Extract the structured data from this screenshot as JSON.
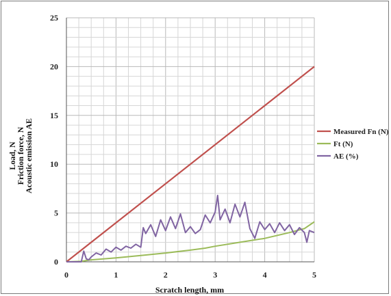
{
  "chart_data": {
    "type": "line",
    "xlabel": "Scratch length, mm",
    "ylabel_lines": [
      "Load, N",
      "Friction force, N",
      "Acoustic emission AE"
    ],
    "xlim": [
      0,
      5
    ],
    "ylim": [
      0,
      25
    ],
    "x_ticks": [
      "0",
      "1",
      "2",
      "3",
      "4",
      "5"
    ],
    "y_ticks": [
      "0",
      "5",
      "10",
      "15",
      "20",
      "25"
    ],
    "grid": true,
    "legend_position": "right",
    "series": [
      {
        "name": "Measured Fn (N)",
        "color": "#c0504d",
        "x": [
          0,
          5
        ],
        "y": [
          0,
          20
        ]
      },
      {
        "name": "Ft (N)",
        "color": "#9bbb59",
        "x": [
          0,
          0.3,
          0.5,
          1.0,
          1.5,
          2.0,
          2.5,
          2.8,
          3.0,
          3.5,
          4.0,
          4.5,
          4.8,
          5.0
        ],
        "y": [
          0,
          0.05,
          0.2,
          0.4,
          0.65,
          0.9,
          1.2,
          1.4,
          1.6,
          2.0,
          2.4,
          3.0,
          3.4,
          4.1
        ]
      },
      {
        "name": "AE (%)",
        "color": "#8064a2",
        "x": [
          0,
          0.3,
          0.35,
          0.4,
          0.45,
          0.5,
          0.6,
          0.7,
          0.8,
          0.9,
          1.0,
          1.1,
          1.2,
          1.3,
          1.4,
          1.5,
          1.55,
          1.6,
          1.7,
          1.8,
          1.9,
          2.0,
          2.1,
          2.2,
          2.3,
          2.4,
          2.5,
          2.6,
          2.7,
          2.8,
          2.9,
          3.0,
          3.05,
          3.1,
          3.2,
          3.3,
          3.4,
          3.5,
          3.6,
          3.7,
          3.8,
          3.9,
          4.0,
          4.1,
          4.2,
          4.3,
          4.4,
          4.5,
          4.6,
          4.7,
          4.8,
          4.85,
          4.9,
          5.0
        ],
        "y": [
          0,
          0,
          1.1,
          0.3,
          0.2,
          0.5,
          0.9,
          0.7,
          1.3,
          1.0,
          1.5,
          1.2,
          1.6,
          1.4,
          1.8,
          1.5,
          3.5,
          2.9,
          3.8,
          2.6,
          4.3,
          3.2,
          4.6,
          3.4,
          4.9,
          3.0,
          3.6,
          2.9,
          3.3,
          4.8,
          4.0,
          5.1,
          6.8,
          4.3,
          5.4,
          4.0,
          5.9,
          4.6,
          6.1,
          3.4,
          2.4,
          4.1,
          3.3,
          3.9,
          3.0,
          4.0,
          3.2,
          3.8,
          2.8,
          3.5,
          3.0,
          2.0,
          3.2,
          3.0
        ]
      }
    ]
  }
}
